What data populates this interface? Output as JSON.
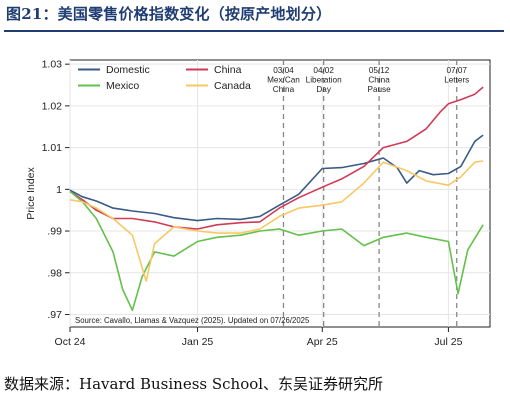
{
  "figure": {
    "title": "图21：美国零售价格指数变化（按原产地划分）",
    "source": "数据来源：Havard Business School、东吴证券研究所"
  },
  "chart_data": {
    "type": "line",
    "ylabel": "Price Index",
    "xlabel": "",
    "ylim": [
      0.967,
      1.031
    ],
    "yticks": [
      0.97,
      0.98,
      0.99,
      1.0,
      1.01,
      1.02,
      1.03
    ],
    "ytick_labels": [
      ".97",
      ".98",
      ".99",
      "1",
      "1.01",
      "1.02",
      "1.03"
    ],
    "xlim": [
      "2024-10-01",
      "2025-07-31"
    ],
    "xticks": [
      "2024-10-01",
      "2025-01-01",
      "2025-04-01",
      "2025-07-01"
    ],
    "xtick_labels": [
      "Oct 24",
      "Jan 25",
      "Apr 25",
      "Jul 25"
    ],
    "grid": true,
    "legend": "top-left",
    "source_note": "Source: Cavallo, Llamas & Vazquez (2025). Updated on 07/26/2025",
    "events": [
      {
        "date": "2025-03-04",
        "label": [
          "03/04",
          "Mex/Can",
          "China"
        ]
      },
      {
        "date": "2025-04-02",
        "label": [
          "04/02",
          "Liberation",
          "Day"
        ]
      },
      {
        "date": "2025-05-12",
        "label": [
          "05/12",
          "China",
          "Pause"
        ]
      },
      {
        "date": "2025-07-07",
        "label": [
          "07/07",
          "Letters"
        ]
      }
    ],
    "series": [
      {
        "name": "Domestic",
        "color": "#3a5a86",
        "x": [
          "2024-10-01",
          "2024-10-10",
          "2024-10-20",
          "2024-11-01",
          "2024-11-15",
          "2024-12-01",
          "2024-12-15",
          "2025-01-01",
          "2025-01-15",
          "2025-02-01",
          "2025-02-15",
          "2025-03-01",
          "2025-03-15",
          "2025-04-01",
          "2025-04-15",
          "2025-05-01",
          "2025-05-15",
          "2025-05-25",
          "2025-06-01",
          "2025-06-10",
          "2025-06-20",
          "2025-07-01",
          "2025-07-10",
          "2025-07-20",
          "2025-07-26"
        ],
        "values": [
          0.9998,
          0.9982,
          0.9972,
          0.9955,
          0.9948,
          0.9942,
          0.9932,
          0.9925,
          0.993,
          0.9928,
          0.9935,
          0.9962,
          0.9988,
          1.005,
          1.0052,
          1.0062,
          1.0075,
          1.0052,
          1.0015,
          1.0045,
          1.0035,
          1.0038,
          1.0055,
          1.0115,
          1.013
        ]
      },
      {
        "name": "China",
        "color": "#d03a55",
        "x": [
          "2024-10-01",
          "2024-10-10",
          "2024-10-20",
          "2024-11-01",
          "2024-11-15",
          "2024-12-01",
          "2024-12-15",
          "2025-01-01",
          "2025-01-15",
          "2025-02-01",
          "2025-02-15",
          "2025-03-01",
          "2025-03-15",
          "2025-04-01",
          "2025-04-15",
          "2025-05-01",
          "2025-05-15",
          "2025-06-01",
          "2025-06-15",
          "2025-06-25",
          "2025-07-01",
          "2025-07-10",
          "2025-07-20",
          "2025-07-26"
        ],
        "values": [
          0.9995,
          0.9975,
          0.995,
          0.993,
          0.993,
          0.9922,
          0.991,
          0.9905,
          0.9915,
          0.992,
          0.9922,
          0.9955,
          0.998,
          1.0005,
          1.0025,
          1.0055,
          1.01,
          1.0115,
          1.0145,
          1.0185,
          1.0205,
          1.0215,
          1.0228,
          1.0245
        ]
      },
      {
        "name": "Mexico",
        "color": "#63c04a",
        "x": [
          "2024-10-01",
          "2024-10-10",
          "2024-10-20",
          "2024-11-01",
          "2024-11-08",
          "2024-11-15",
          "2024-11-22",
          "2024-12-01",
          "2024-12-15",
          "2025-01-01",
          "2025-01-15",
          "2025-02-01",
          "2025-02-15",
          "2025-03-01",
          "2025-03-15",
          "2025-04-01",
          "2025-04-15",
          "2025-05-01",
          "2025-05-15",
          "2025-06-01",
          "2025-06-15",
          "2025-07-01",
          "2025-07-08",
          "2025-07-15",
          "2025-07-26"
        ],
        "values": [
          0.9995,
          0.997,
          0.993,
          0.985,
          0.976,
          0.971,
          0.979,
          0.985,
          0.984,
          0.9875,
          0.9885,
          0.989,
          0.99,
          0.9905,
          0.989,
          0.99,
          0.9905,
          0.9865,
          0.9885,
          0.9895,
          0.9885,
          0.9875,
          0.975,
          0.9855,
          0.9915
        ]
      },
      {
        "name": "Canada",
        "color": "#f7c864",
        "x": [
          "2024-10-01",
          "2024-10-10",
          "2024-10-20",
          "2024-11-01",
          "2024-11-15",
          "2024-11-25",
          "2024-12-01",
          "2024-12-15",
          "2025-01-01",
          "2025-01-15",
          "2025-02-01",
          "2025-02-15",
          "2025-03-01",
          "2025-03-15",
          "2025-04-01",
          "2025-04-15",
          "2025-05-01",
          "2025-05-15",
          "2025-06-01",
          "2025-06-15",
          "2025-07-01",
          "2025-07-10",
          "2025-07-20",
          "2025-07-26"
        ],
        "values": [
          0.9975,
          0.997,
          0.9955,
          0.993,
          0.989,
          0.978,
          0.987,
          0.991,
          0.99,
          0.9895,
          0.9895,
          0.9905,
          0.9935,
          0.9955,
          0.9962,
          0.997,
          1.0015,
          1.0065,
          1.0045,
          1.002,
          1.001,
          1.003,
          1.0065,
          1.0068
        ]
      }
    ]
  }
}
